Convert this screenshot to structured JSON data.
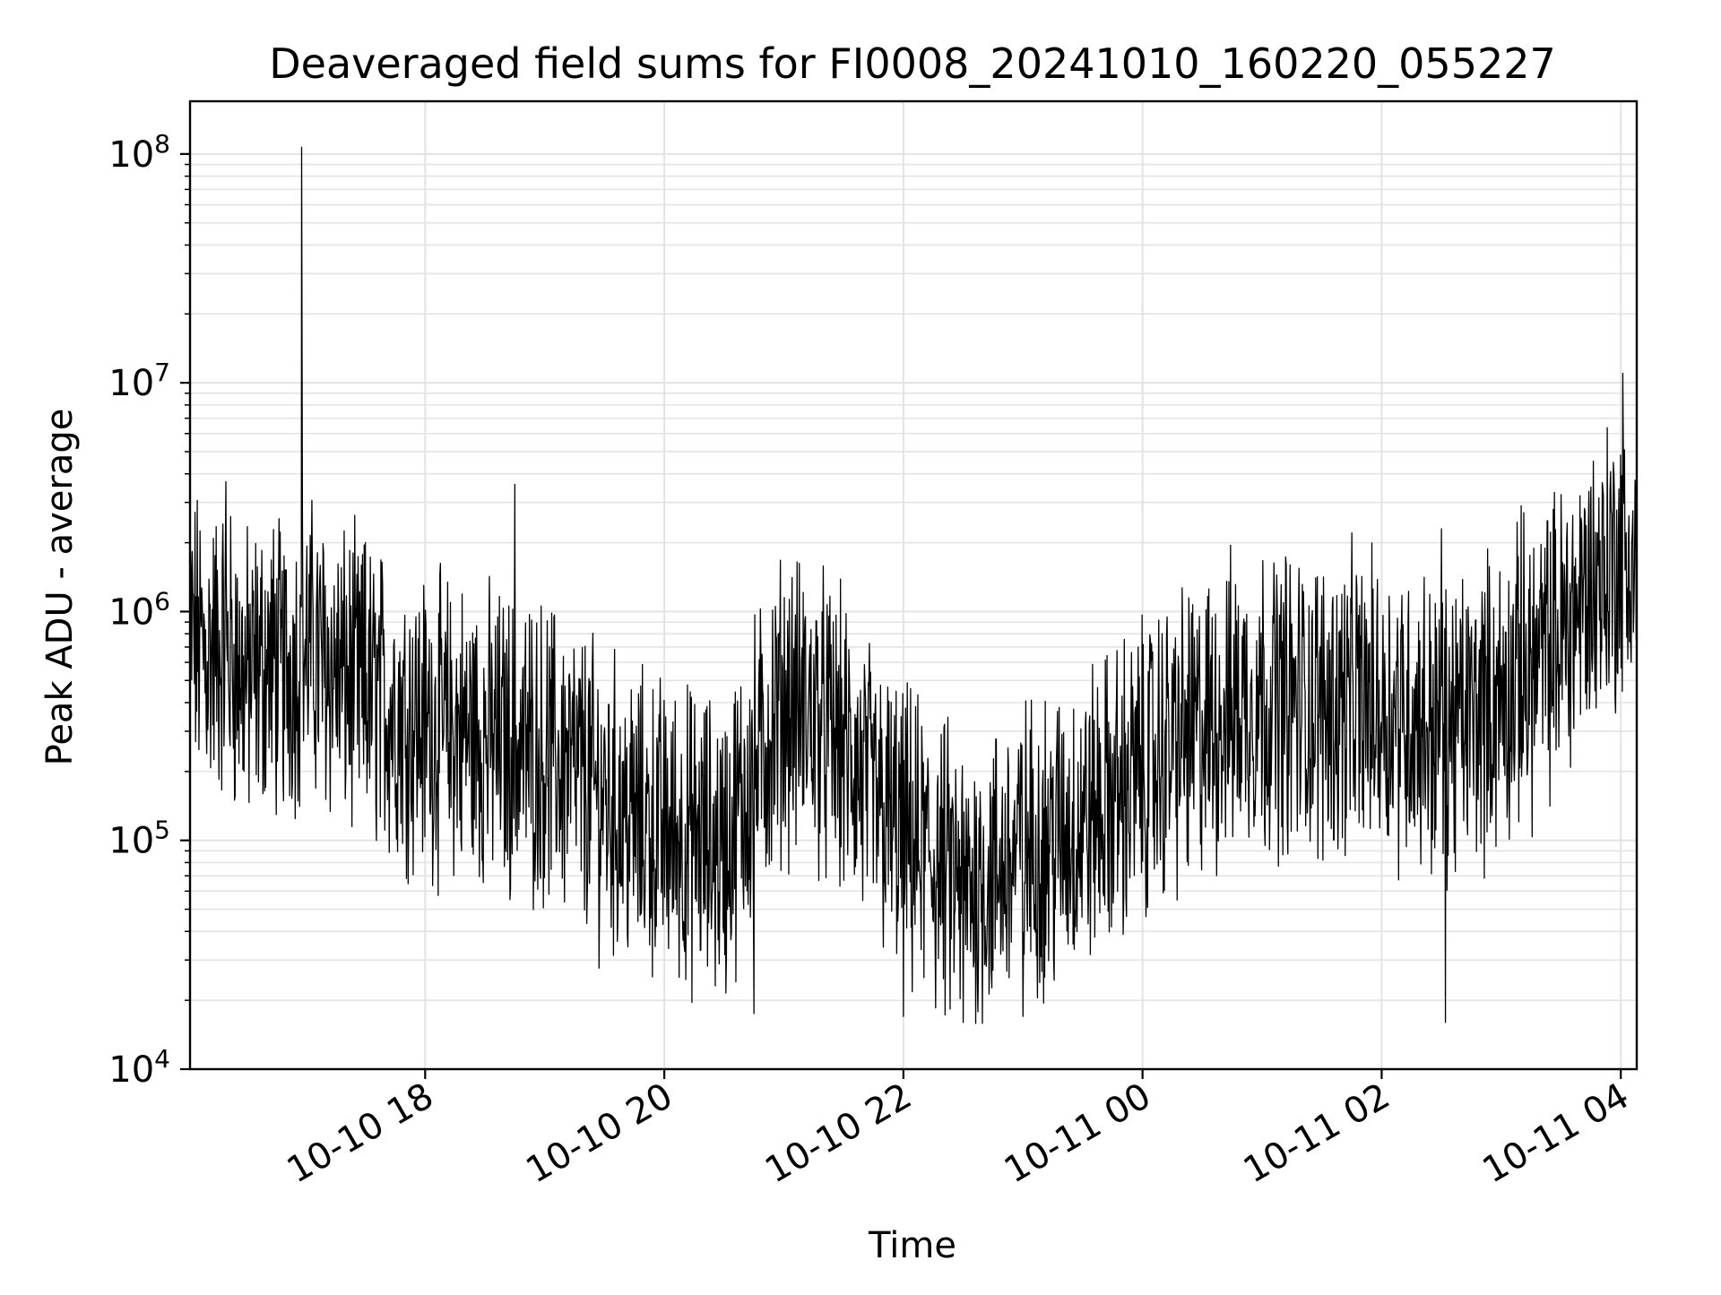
{
  "chart_data": {
    "type": "line",
    "title": "Deaveraged field sums for FI0008_20241010_160220_055227",
    "xlabel": "Time",
    "ylabel": "Peak ADU - average",
    "y_scale": "log",
    "ylim": [
      10000,
      170000000
    ],
    "xlim": [
      "2024-10-10 16:02",
      "2024-10-11 04:08"
    ],
    "grid": "both major and minor, light gray",
    "line_color": "#000000",
    "x_ticks": [
      {
        "label": "10-10 18",
        "time": "2024-10-10 18:00"
      },
      {
        "label": "10-10 20",
        "time": "2024-10-10 20:00"
      },
      {
        "label": "10-10 22",
        "time": "2024-10-10 22:00"
      },
      {
        "label": "10-11 00",
        "time": "2024-10-11 00:00"
      },
      {
        "label": "10-11 02",
        "time": "2024-10-11 02:00"
      },
      {
        "label": "10-11 04",
        "time": "2024-10-11 04:00"
      }
    ],
    "y_ticks": [
      {
        "base": "10",
        "exp": "4",
        "value": 10000
      },
      {
        "base": "10",
        "exp": "5",
        "value": 100000
      },
      {
        "base": "10",
        "exp": "6",
        "value": 1000000
      },
      {
        "base": "10",
        "exp": "7",
        "value": 10000000
      },
      {
        "base": "10",
        "exp": "8",
        "value": 100000000
      }
    ],
    "series": [
      {
        "color": "#000000",
        "points": [
          [
            "2024-10-10 16:02",
            800000
          ],
          [
            "2024-10-10 16:10",
            650000
          ],
          [
            "2024-10-10 16:20",
            700000
          ],
          [
            "2024-10-10 16:30",
            500000
          ],
          [
            "2024-10-10 16:40",
            600000
          ],
          [
            "2024-10-10 16:50",
            550000
          ],
          [
            "2024-10-10 17:00",
            700000
          ],
          [
            "2024-10-10 17:10",
            600000
          ],
          [
            "2024-10-10 17:20",
            500000
          ],
          [
            "2024-10-10 17:30",
            450000
          ],
          [
            "2024-10-10 17:40",
            400000
          ],
          [
            "2024-10-10 17:50",
            350000
          ],
          [
            "2024-10-10 18:00",
            320000
          ],
          [
            "2024-10-10 18:15",
            300000
          ],
          [
            "2024-10-10 18:30",
            280000
          ],
          [
            "2024-10-10 18:45",
            260000
          ],
          [
            "2024-10-10 19:00",
            240000
          ],
          [
            "2024-10-10 19:15",
            200000
          ],
          [
            "2024-10-10 19:30",
            150000
          ],
          [
            "2024-10-10 19:45",
            120000
          ],
          [
            "2024-10-10 20:00",
            110000
          ],
          [
            "2024-10-10 20:15",
            100000
          ],
          [
            "2024-10-10 20:30",
            90000
          ],
          [
            "2024-10-10 20:45",
            200000
          ],
          [
            "2024-10-10 21:00",
            400000
          ],
          [
            "2024-10-10 21:15",
            350000
          ],
          [
            "2024-10-10 21:30",
            250000
          ],
          [
            "2024-10-10 21:45",
            150000
          ],
          [
            "2024-10-10 22:00",
            100000
          ],
          [
            "2024-10-10 22:15",
            80000
          ],
          [
            "2024-10-10 22:30",
            60000
          ],
          [
            "2024-10-10 22:45",
            70000
          ],
          [
            "2024-10-10 23:00",
            90000
          ],
          [
            "2024-10-10 23:15",
            100000
          ],
          [
            "2024-10-10 23:30",
            120000
          ],
          [
            "2024-10-10 23:45",
            150000
          ],
          [
            "2024-10-11 00:00",
            200000
          ],
          [
            "2024-10-11 00:15",
            260000
          ],
          [
            "2024-10-11 00:30",
            300000
          ],
          [
            "2024-10-11 00:45",
            380000
          ],
          [
            "2024-10-11 01:00",
            420000
          ],
          [
            "2024-10-11 01:15",
            400000
          ],
          [
            "2024-10-11 01:30",
            380000
          ],
          [
            "2024-10-11 01:45",
            400000
          ],
          [
            "2024-10-11 02:00",
            380000
          ],
          [
            "2024-10-11 02:15",
            350000
          ],
          [
            "2024-10-11 02:30",
            300000
          ],
          [
            "2024-10-11 02:45",
            350000
          ],
          [
            "2024-10-11 03:00",
            420000
          ],
          [
            "2024-10-11 03:15",
            550000
          ],
          [
            "2024-10-11 03:30",
            800000
          ],
          [
            "2024-10-11 03:45",
            1300000
          ],
          [
            "2024-10-11 04:00",
            1800000
          ],
          [
            "2024-10-11 04:08",
            1500000
          ]
        ],
        "spikes": [
          [
            "2024-10-10 16:58",
            107000000
          ],
          [
            "2024-10-10 17:30",
            2000000
          ],
          [
            "2024-10-10 18:45",
            3600000
          ],
          [
            "2024-10-11 04:01",
            11000000
          ],
          [
            "2024-10-11 03:45",
            3500000
          ],
          [
            "2024-10-10 16:20",
            3700000
          ],
          [
            "2024-10-11 02:30",
            2300000
          ],
          [
            "2024-10-11 03:10",
            2900000
          ]
        ],
        "dips": [
          [
            "2024-10-10 22:30",
            16000
          ],
          [
            "2024-10-11 02:32",
            16000
          ],
          [
            "2024-10-10 22:00",
            17000
          ],
          [
            "2024-10-10 20:45",
            17500
          ],
          [
            "2024-10-10 23:00",
            17000
          ]
        ],
        "noise_decades": 1.1
      }
    ]
  }
}
